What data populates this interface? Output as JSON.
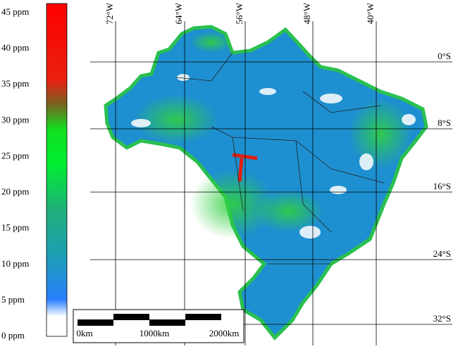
{
  "colorbar": {
    "ticks": [
      "0 ppm",
      "5 ppm",
      "10 ppm",
      "15 ppm",
      "20 ppm",
      "25 ppm",
      "30 ppm",
      "35 ppm",
      "40 ppm",
      "45 ppm"
    ]
  },
  "longitudes": [
    "72°W",
    "64°W",
    "56°W",
    "48°W",
    "40°W"
  ],
  "latitudes": [
    "0°S",
    "8°S",
    "16°S",
    "24°S",
    "32°S"
  ],
  "scale_bar": [
    "0km",
    "1000km",
    "2000km"
  ]
}
